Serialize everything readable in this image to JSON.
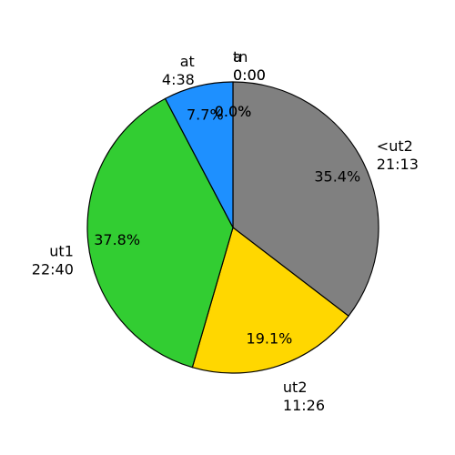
{
  "chart_data": {
    "type": "pie",
    "slices": [
      {
        "label": "<ut2",
        "time": "21:13",
        "value": 35.4,
        "pct": "35.4%",
        "color": "#808080"
      },
      {
        "label": "ut2",
        "time": "11:26",
        "value": 19.1,
        "pct": "19.1%",
        "color": "#ffd700"
      },
      {
        "label": "ut1",
        "time": "22:40",
        "value": 37.8,
        "pct": "37.8%",
        "color": "#32cd32"
      },
      {
        "label": "at",
        "time": "4:38",
        "value": 7.7,
        "pct": "7.7%",
        "color": "#1e90ff"
      },
      {
        "label": "a",
        "time": "0:00",
        "value": 0.0,
        "pct": "0.0%",
        "color": "#ff0000"
      },
      {
        "label": "tn",
        "time": "0:00",
        "value": 0.0,
        "pct": "0.0%",
        "color": "#000000"
      }
    ],
    "start": "top",
    "direction": "clockwise"
  }
}
